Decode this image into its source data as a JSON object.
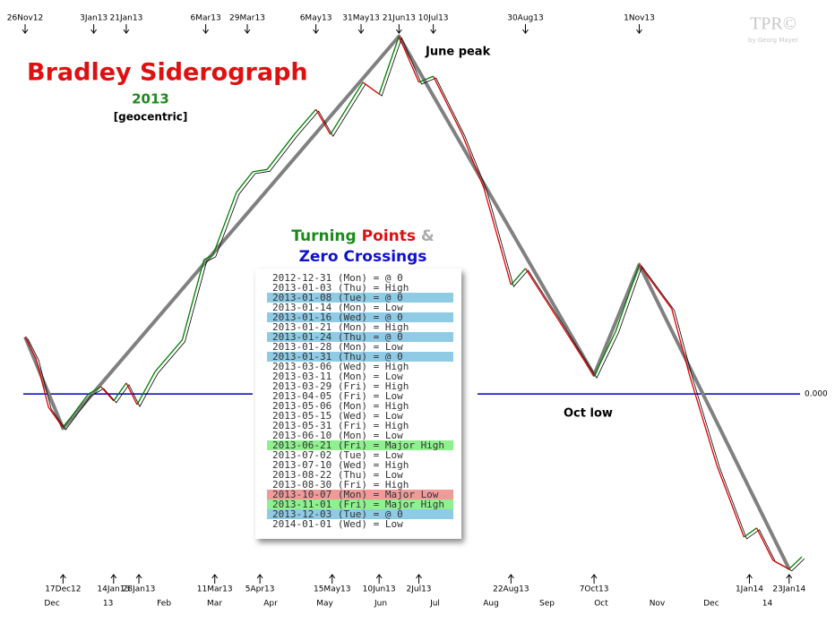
{
  "chart_data": {
    "type": "line",
    "title": "Bradley Siderograph",
    "subtitle": "2013",
    "note": "[geocentric]",
    "watermark": "TPR©",
    "watermark_sub": "by Georg Mayer",
    "annotations": [
      "June peak",
      "Oct low"
    ],
    "xlim": [
      "2012-11-25",
      "2014-02-03"
    ],
    "ylim": [
      -47,
      100
    ],
    "yticks": [
      {
        "value": 0,
        "label": "0.000"
      }
    ],
    "zero_line_color": "#0000c0",
    "xticks": [
      {
        "value": "2012-12-01",
        "label": "Dec"
      },
      {
        "value": "2013-01-01",
        "label": "13"
      },
      {
        "value": "2013-02-01",
        "label": "Feb"
      },
      {
        "value": "2013-03-01",
        "label": "Mar"
      },
      {
        "value": "2013-04-01",
        "label": "Apr"
      },
      {
        "value": "2013-05-01",
        "label": "May"
      },
      {
        "value": "2013-06-01",
        "label": "Jun"
      },
      {
        "value": "2013-07-01",
        "label": "Jul"
      },
      {
        "value": "2013-08-01",
        "label": "Aug"
      },
      {
        "value": "2013-09-01",
        "label": "Sep"
      },
      {
        "value": "2013-10-01",
        "label": "Oct"
      },
      {
        "value": "2013-11-01",
        "label": "Nov"
      },
      {
        "value": "2013-12-01",
        "label": "Dec"
      },
      {
        "value": "2014-01-01",
        "label": "14"
      }
    ],
    "top_markers": [
      {
        "value": "2012-11-26",
        "label": "26Nov12"
      },
      {
        "value": "2013-01-03",
        "label": "3Jan13"
      },
      {
        "value": "2013-01-21",
        "label": "21Jan13"
      },
      {
        "value": "2013-03-06",
        "label": "6Mar13"
      },
      {
        "value": "2013-03-29",
        "label": "29Mar13"
      },
      {
        "value": "2013-05-06",
        "label": "6May13"
      },
      {
        "value": "2013-05-31",
        "label": "31May13"
      },
      {
        "value": "2013-06-21",
        "label": "21Jun13"
      },
      {
        "value": "2013-07-10",
        "label": "10Jul13"
      },
      {
        "value": "2013-08-30",
        "label": "30Aug13"
      },
      {
        "value": "2013-11-01",
        "label": "1Nov13"
      }
    ],
    "bottom_markers": [
      {
        "value": "2012-12-17",
        "label": "17Dec12"
      },
      {
        "value": "2013-01-14",
        "label": "14Jan13"
      },
      {
        "value": "2013-01-28",
        "label": "28Jan13"
      },
      {
        "value": "2013-03-11",
        "label": "11Mar13"
      },
      {
        "value": "2013-04-05",
        "label": "5Apr13"
      },
      {
        "value": "2013-05-15",
        "label": "15May13"
      },
      {
        "value": "2013-06-10",
        "label": "10Jun13"
      },
      {
        "value": "2013-07-02",
        "label": "2Jul13"
      },
      {
        "value": "2013-08-22",
        "label": "22Aug13"
      },
      {
        "value": "2013-10-07",
        "label": "7Oct13"
      },
      {
        "value": "2014-01-01",
        "label": "1Jan14"
      },
      {
        "value": "2014-01-23",
        "label": "23Jan14"
      }
    ],
    "zigzag": {
      "color": "#808080",
      "x": [
        "2012-11-26",
        "2012-12-17",
        "2013-06-21",
        "2013-10-07",
        "2013-11-01",
        "2014-01-23"
      ],
      "values": [
        15,
        -9,
        94,
        5,
        34,
        -46
      ]
    },
    "siderograph": {
      "up_color": "#008000",
      "down_color": "#e00000",
      "x": [
        "2012-11-26",
        "2012-12-02",
        "2012-12-09",
        "2012-12-17",
        "2012-12-31",
        "2013-01-07",
        "2013-01-14",
        "2013-01-21",
        "2013-01-27",
        "2013-02-06",
        "2013-02-21",
        "2013-03-05",
        "2013-03-10",
        "2013-03-23",
        "2013-04-01",
        "2013-04-09",
        "2013-04-24",
        "2013-05-06",
        "2013-05-14",
        "2013-06-01",
        "2013-06-10",
        "2013-06-21",
        "2013-07-02",
        "2013-07-10",
        "2013-07-26",
        "2013-08-07",
        "2013-08-22",
        "2013-08-30",
        "2013-09-18",
        "2013-10-07",
        "2013-10-19",
        "2013-11-01",
        "2013-11-19",
        "2013-11-29",
        "2013-12-14",
        "2013-12-29",
        "2014-01-05",
        "2014-01-14",
        "2014-01-23",
        "2014-01-30"
      ],
      "values": [
        15,
        9.4,
        -3.5,
        -8.9,
        0,
        1.9,
        -1.8,
        2.9,
        -2.8,
        5.9,
        14.2,
        35.3,
        36.5,
        53,
        58.4,
        59,
        68.2,
        74.8,
        68.2,
        81.9,
        78.8,
        94,
        81.9,
        83.5,
        68.2,
        54.1,
        28.7,
        33,
        18.9,
        4.7,
        16.5,
        34,
        22.4,
        4.7,
        -18.8,
        -37.6,
        -35.2,
        -43.7,
        -46,
        -42.8
      ]
    },
    "table": {
      "title": [
        "Turning",
        "Points",
        "&"
      ],
      "subtitle": "Zero Crossings",
      "rows": [
        {
          "text": "2012-12-31 (Mon) = @ 0"
        },
        {
          "text": "2013-01-03 (Thu) = High"
        },
        {
          "text": "2013-01-08 (Tue) = @ 0",
          "highlight": "#90cbe6"
        },
        {
          "text": "2013-01-14 (Mon) = Low"
        },
        {
          "text": "2013-01-16 (Wed) = @ 0",
          "highlight": "#90cbe6"
        },
        {
          "text": "2013-01-21 (Mon) = High"
        },
        {
          "text": "2013-01-24 (Thu) = @ 0",
          "highlight": "#90cbe6"
        },
        {
          "text": "2013-01-28 (Mon) = Low"
        },
        {
          "text": "2013-01-31 (Thu) = @ 0",
          "highlight": "#90cbe6"
        },
        {
          "text": "2013-03-06 (Wed) = High"
        },
        {
          "text": "2013-03-11 (Mon) = Low"
        },
        {
          "text": "2013-03-29 (Fri) = High"
        },
        {
          "text": "2013-04-05 (Fri) = Low"
        },
        {
          "text": "2013-05-06 (Mon) = High"
        },
        {
          "text": "2013-05-15 (Wed) = Low"
        },
        {
          "text": "2013-05-31 (Fri) = High"
        },
        {
          "text": "2013-06-10 (Mon) = Low"
        },
        {
          "text": "2013-06-21 (Fri) = Major High",
          "highlight": "#8ef08e"
        },
        {
          "text": "2013-07-02 (Tue) = Low"
        },
        {
          "text": "2013-07-10 (Wed) = High"
        },
        {
          "text": "2013-08-22 (Thu) = Low"
        },
        {
          "text": "2013-08-30 (Fri) = High"
        },
        {
          "text": "2013-10-07 (Mon) = Major Low",
          "highlight": "#f09a9a"
        },
        {
          "text": "2013-11-01 (Fri) = Major High",
          "highlight": "#8ef08e"
        },
        {
          "text": "2013-12-03 (Tue) = @ 0",
          "highlight": "#90cbe6"
        },
        {
          "text": "2014-01-01 (Wed) = Low"
        }
      ]
    }
  }
}
